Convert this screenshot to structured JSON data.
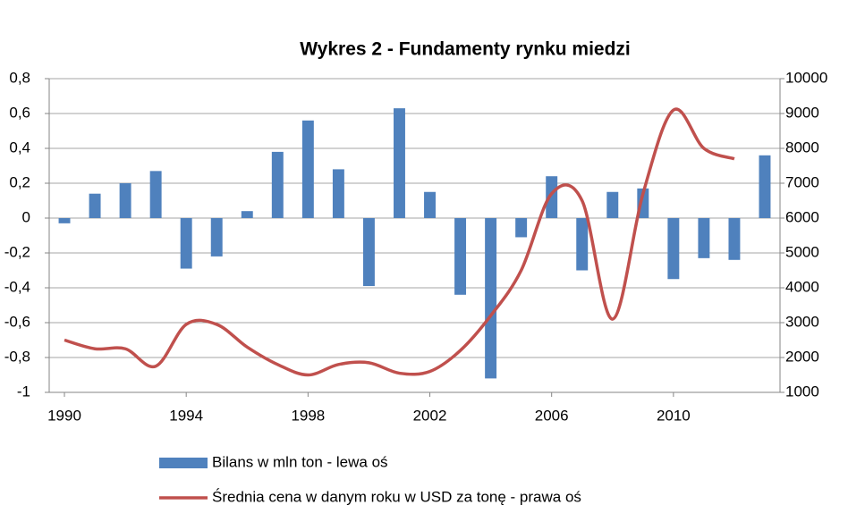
{
  "chart_data": {
    "type": "bar-line",
    "title": "Wykres 2 - Fundamenty rynku miedzi",
    "x": [
      1990,
      1991,
      1992,
      1993,
      1994,
      1995,
      1996,
      1997,
      1998,
      1999,
      2000,
      2001,
      2002,
      2003,
      2004,
      2005,
      2006,
      2007,
      2008,
      2009,
      2010,
      2011,
      2012,
      2013
    ],
    "xlim": [
      1989.5,
      2013.5
    ],
    "xticks": [
      1990,
      1994,
      1998,
      2002,
      2006,
      2010
    ],
    "ylim": [
      -1,
      0.8
    ],
    "yticks": [
      -1,
      {
        "value": -0.8,
        "label": "-0,8"
      },
      {
        "value": -0.6,
        "label": "-0,6"
      },
      {
        "value": -0.4,
        "label": "-0,4"
      },
      {
        "value": -0.2,
        "label": "-0,2"
      },
      0,
      {
        "value": 0.2,
        "label": "0,2"
      },
      {
        "value": 0.4,
        "label": "0,4"
      },
      {
        "value": 0.6,
        "label": "0,6"
      },
      {
        "value": 0.8,
        "label": "0,8"
      }
    ],
    "y2lim": [
      1000,
      10000
    ],
    "y2ticks": [
      1000,
      2000,
      3000,
      4000,
      5000,
      6000,
      7000,
      8000,
      9000,
      10000
    ],
    "grid": true,
    "series": [
      {
        "name": "Bilans w mln ton - lewa oś",
        "type": "bar",
        "color": "#4f81bd",
        "values": [
          -0.03,
          0.14,
          0.2,
          0.27,
          -0.29,
          -0.22,
          0.04,
          0.38,
          0.56,
          0.28,
          -0.39,
          0.63,
          0.15,
          -0.44,
          -0.92,
          -0.11,
          0.24,
          -0.3,
          0.15,
          0.17,
          -0.35,
          -0.23,
          -0.24,
          0.36
        ]
      },
      {
        "name": "Średnia cena w danym roku w USD za tonę - prawa oś",
        "type": "line",
        "axis": "y2",
        "color": "#c0504d",
        "values": [
          2500,
          2250,
          2250,
          1750,
          2950,
          2950,
          2300,
          1800,
          1500,
          1800,
          1850,
          1550,
          1600,
          2200,
          3200,
          4500,
          6700,
          6500,
          3100,
          6700,
          9100,
          8000,
          7700,
          null
        ]
      }
    ]
  }
}
